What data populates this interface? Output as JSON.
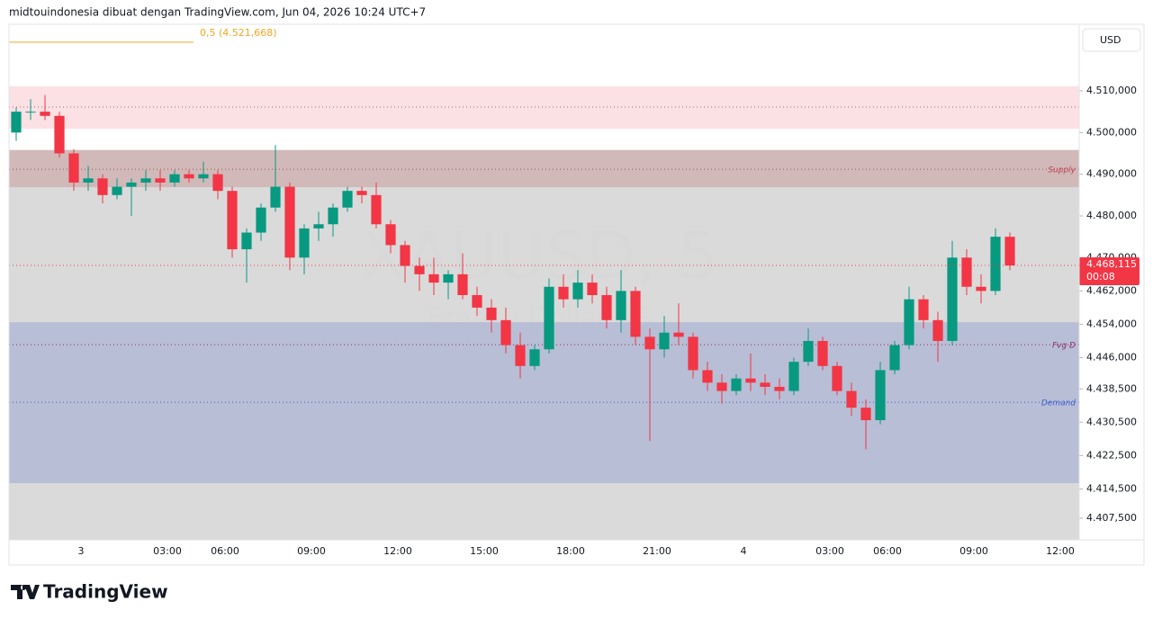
{
  "chart_data": {
    "type": "candlestick",
    "title": "midtouindonesia dibuat dengan TradingView.com, Jun 04, 2026 10:24 UTC+7",
    "currency": "USD",
    "brand": "TradingView",
    "watermark": {
      "symbol": "XAUUSD, 5",
      "name": "Emas / Dollar AS"
    },
    "indicator": {
      "value": 4521.668,
      "label": "0,5 (4.521,668)",
      "color": "#f5a623"
    },
    "last_price": {
      "value": 4468.115,
      "label": "4.468,115",
      "countdown": "00:08",
      "color": "#f23645"
    },
    "up_color": "#089981",
    "down_color": "#f23645",
    "ylim": [
      4402.3,
      4525.75
    ],
    "yticks": [
      {
        "value": 4510,
        "label": "4.510,000"
      },
      {
        "value": 4500,
        "label": "4.500,000"
      },
      {
        "value": 4490,
        "label": "4.490,000"
      },
      {
        "value": 4480,
        "label": "4.480,000"
      },
      {
        "value": 4470,
        "label": "4.470,000"
      },
      {
        "value": 4462,
        "label": "4.462,000"
      },
      {
        "value": 4454,
        "label": "4.454,000"
      },
      {
        "value": 4446,
        "label": "4.446,000"
      },
      {
        "value": 4438.5,
        "label": "4.438,500"
      },
      {
        "value": 4430.5,
        "label": "4.430,500"
      },
      {
        "value": 4422.5,
        "label": "4.422,500"
      },
      {
        "value": 4414.5,
        "label": "4.414,500"
      },
      {
        "value": 4407.5,
        "label": "4.407,500"
      }
    ],
    "zones": [
      {
        "top": 4495.8,
        "bottom": 4402.3,
        "color": "#d4d4d4"
      },
      {
        "top": 4511.1,
        "bottom": 4500.9,
        "color": "#fcdcdf"
      },
      {
        "top": 4495.8,
        "bottom": 4486.9,
        "color": "#cfb3b3"
      },
      {
        "top": 4454.5,
        "bottom": 4415.9,
        "color": "#b2b9d3"
      }
    ],
    "levels": [
      {
        "value": 4506.1,
        "color": "#9c6b6b"
      },
      {
        "value": 4491.2,
        "color": "#a05050",
        "label": "Supply",
        "label_color": "#c0404a"
      },
      {
        "value": 4449.1,
        "color": "#8b2d6b",
        "label": "Fvg D",
        "label_color": "#8b2d6b"
      },
      {
        "value": 4435.3,
        "color": "#3b5bcf",
        "label": "Demand",
        "label_color": "#3b5bcf"
      }
    ],
    "categories": [
      null,
      null,
      null,
      null,
      null,
      "3",
      null,
      null,
      null,
      null,
      null,
      "03:00",
      null,
      null,
      null,
      "06:00",
      null,
      null,
      null,
      null,
      null,
      "09:00",
      null,
      null,
      null,
      null,
      null,
      "12:00",
      null,
      null,
      null,
      null,
      null,
      "15:00",
      null,
      null,
      null,
      null,
      null,
      "18:00",
      null,
      null,
      null,
      null,
      null,
      "21:00",
      null,
      null,
      null,
      null,
      null,
      "4",
      null,
      null,
      null,
      null,
      null,
      "03:00",
      null,
      null,
      null,
      "06:00",
      null,
      null,
      null,
      null,
      null,
      "09:00",
      null,
      null,
      null,
      null,
      null,
      "12:00"
    ],
    "open": [
      4500,
      4505,
      4505,
      4504,
      4495,
      4488,
      4489,
      4485,
      4487,
      4488,
      4489,
      4488,
      4490,
      4489,
      4490,
      4486,
      4472,
      4476,
      4482,
      4487,
      4470,
      4477,
      4478,
      4482,
      4486,
      4485,
      4478,
      4473,
      4468,
      4466,
      4464,
      4466,
      4461,
      4458,
      4455,
      4449,
      4444,
      4448,
      4463,
      4460,
      4464,
      4461,
      4455,
      4462,
      4451,
      4448,
      4452,
      4451,
      4443,
      4440,
      4438,
      4441,
      4440,
      4439,
      4438,
      4445,
      4450,
      4444,
      4438,
      4434,
      4431,
      4443,
      4449,
      4460,
      4455,
      4450,
      4470,
      4463,
      4462,
      4475,
      null,
      null,
      null,
      null
    ],
    "high": [
      4506,
      4508,
      4509,
      4505,
      4496,
      4492,
      4490,
      4489,
      4489,
      4491,
      4491,
      4491,
      4491,
      4493,
      4491,
      4487,
      4477,
      4483,
      4497,
      4488,
      4478,
      4481,
      4483,
      4487,
      4487,
      4488,
      4479,
      4474,
      4470,
      4470,
      4467,
      4471,
      4463,
      4460,
      4458,
      4452,
      4449,
      4465,
      4466,
      4467,
      4466,
      4463,
      4467,
      4463,
      4453,
      4456,
      4459,
      4452,
      4445,
      4442,
      4442,
      4447,
      4442,
      4441,
      4446,
      4453,
      4451,
      4445,
      4440,
      4436,
      4445,
      4450,
      4463,
      4461,
      4457,
      4474,
      4472,
      4466,
      4477,
      4476,
      null,
      null,
      null,
      null
    ],
    "low": [
      4498,
      4503,
      4503,
      4494,
      4486,
      4486,
      4483,
      4484,
      4480,
      4486,
      4486,
      4487,
      4488,
      4488,
      4484,
      4470,
      4464,
      4474,
      4481,
      4467,
      4466,
      4474,
      4475,
      4481,
      4483,
      4477,
      4471,
      4464,
      4462,
      4461,
      4460,
      4460,
      4456,
      4452,
      4447,
      4441,
      4443,
      4447,
      4458,
      4458,
      4459,
      4453,
      4452,
      4449,
      4426,
      4446,
      4449,
      4441,
      4438,
      4435,
      4437,
      4438,
      4437,
      4436,
      4437,
      4444,
      4443,
      4437,
      4432,
      4424,
      4430,
      4442,
      4448,
      4453,
      4445,
      4449,
      4461,
      4459,
      4461,
      4467,
      null,
      null,
      null,
      null
    ],
    "close": [
      4505,
      4505,
      4504,
      4495,
      4488,
      4489,
      4485,
      4487,
      4488,
      4489,
      4488,
      4490,
      4489,
      4490,
      4486,
      4472,
      4476,
      4482,
      4487,
      4470,
      4477,
      4478,
      4482,
      4486,
      4485,
      4478,
      4473,
      4468,
      4466,
      4464,
      4466,
      4461,
      4458,
      4455,
      4449,
      4444,
      4448,
      4463,
      4460,
      4464,
      4461,
      4455,
      4462,
      4451,
      4448,
      4452,
      4451,
      4443,
      4440,
      4438,
      4441,
      4440,
      4439,
      4438,
      4445,
      4450,
      4444,
      4438,
      4434,
      4431,
      4443,
      4449,
      4460,
      4455,
      4450,
      4470,
      4463,
      4462,
      4475,
      4468.115,
      null,
      null,
      null,
      null
    ]
  }
}
